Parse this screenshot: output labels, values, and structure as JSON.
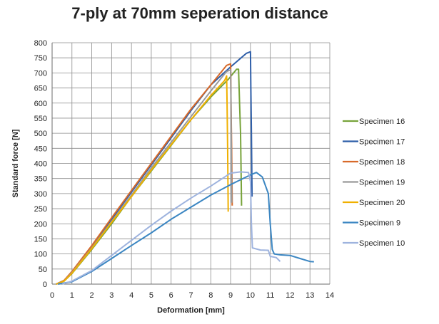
{
  "chart_data": {
    "type": "line",
    "title": "7-ply at 70mm seperation distance",
    "xlabel": "Deformation [mm]",
    "ylabel": "Standard force [N]",
    "xlim": [
      0,
      14
    ],
    "ylim": [
      0,
      800
    ],
    "x_ticks": [
      0,
      1,
      2,
      3,
      4,
      5,
      6,
      7,
      8,
      9,
      10,
      11,
      12,
      13,
      14
    ],
    "y_ticks": [
      0,
      50,
      100,
      150,
      200,
      250,
      300,
      350,
      400,
      450,
      500,
      550,
      600,
      650,
      700,
      750,
      800
    ],
    "grid": true,
    "legend_position": "right",
    "series": [
      {
        "name": "Specimen 16",
        "color": "#77a33a",
        "points": [
          [
            0.2,
            0
          ],
          [
            0.6,
            10
          ],
          [
            1.0,
            35
          ],
          [
            2.0,
            115
          ],
          [
            3.0,
            200
          ],
          [
            4.0,
            290
          ],
          [
            5.0,
            375
          ],
          [
            6.0,
            460
          ],
          [
            7.0,
            545
          ],
          [
            8.0,
            620
          ],
          [
            8.9,
            680
          ],
          [
            9.3,
            712
          ],
          [
            9.4,
            712
          ],
          [
            9.45,
            600
          ],
          [
            9.5,
            500
          ],
          [
            9.55,
            260
          ]
        ]
      },
      {
        "name": "Specimen 17",
        "color": "#2e5ea8",
        "points": [
          [
            0.2,
            0
          ],
          [
            0.6,
            12
          ],
          [
            1.0,
            40
          ],
          [
            2.0,
            125
          ],
          [
            3.0,
            215
          ],
          [
            4.0,
            305
          ],
          [
            5.0,
            395
          ],
          [
            6.0,
            485
          ],
          [
            7.0,
            575
          ],
          [
            8.0,
            660
          ],
          [
            9.0,
            720
          ],
          [
            9.8,
            765
          ],
          [
            10.0,
            770
          ],
          [
            10.02,
            650
          ],
          [
            10.05,
            500
          ],
          [
            10.08,
            290
          ]
        ]
      },
      {
        "name": "Specimen 18",
        "color": "#d86a2a",
        "points": [
          [
            0.2,
            0
          ],
          [
            0.6,
            12
          ],
          [
            1.0,
            42
          ],
          [
            2.0,
            128
          ],
          [
            3.0,
            220
          ],
          [
            4.0,
            310
          ],
          [
            5.0,
            400
          ],
          [
            6.0,
            490
          ],
          [
            7.0,
            580
          ],
          [
            8.0,
            660
          ],
          [
            8.8,
            725
          ],
          [
            9.0,
            730
          ],
          [
            9.02,
            600
          ],
          [
            9.05,
            450
          ],
          [
            9.08,
            260
          ]
        ]
      },
      {
        "name": "Specimen 19",
        "color": "#9a9a9a",
        "points": [
          [
            0.2,
            0
          ],
          [
            0.6,
            10
          ],
          [
            1.0,
            38
          ],
          [
            2.0,
            120
          ],
          [
            3.0,
            208
          ],
          [
            4.0,
            295
          ],
          [
            5.0,
            385
          ],
          [
            6.0,
            470
          ],
          [
            7.0,
            555
          ],
          [
            8.0,
            640
          ],
          [
            8.8,
            705
          ],
          [
            9.0,
            710
          ],
          [
            9.02,
            600
          ],
          [
            9.04,
            400
          ],
          [
            9.06,
            270
          ]
        ]
      },
      {
        "name": "Specimen 20",
        "color": "#f0b000",
        "points": [
          [
            0.2,
            0
          ],
          [
            0.6,
            10
          ],
          [
            1.0,
            36
          ],
          [
            2.0,
            118
          ],
          [
            3.0,
            205
          ],
          [
            4.0,
            290
          ],
          [
            5.0,
            378
          ],
          [
            6.0,
            462
          ],
          [
            7.0,
            545
          ],
          [
            8.0,
            625
          ],
          [
            8.7,
            675
          ],
          [
            8.8,
            690
          ],
          [
            8.82,
            600
          ],
          [
            8.85,
            450
          ],
          [
            8.88,
            240
          ]
        ]
      },
      {
        "name": "Specimen 9",
        "color": "#3b86c2",
        "points": [
          [
            0.3,
            0
          ],
          [
            1.0,
            8
          ],
          [
            2.0,
            42
          ],
          [
            3.0,
            85
          ],
          [
            4.0,
            128
          ],
          [
            5.0,
            170
          ],
          [
            6.0,
            215
          ],
          [
            7.0,
            255
          ],
          [
            8.0,
            295
          ],
          [
            9.0,
            330
          ],
          [
            10.0,
            362
          ],
          [
            10.3,
            370
          ],
          [
            10.6,
            355
          ],
          [
            10.9,
            300
          ],
          [
            11.0,
            200
          ],
          [
            11.1,
            115
          ],
          [
            11.2,
            100
          ],
          [
            11.5,
            97
          ],
          [
            12.0,
            95
          ],
          [
            12.5,
            85
          ],
          [
            13.0,
            75
          ],
          [
            13.2,
            74
          ]
        ]
      },
      {
        "name": "Specimen 10",
        "color": "#9eb3de",
        "points": [
          [
            0.5,
            0
          ],
          [
            1.0,
            10
          ],
          [
            2.0,
            45
          ],
          [
            3.0,
            95
          ],
          [
            4.0,
            145
          ],
          [
            5.0,
            195
          ],
          [
            6.0,
            242
          ],
          [
            7.0,
            285
          ],
          [
            8.0,
            325
          ],
          [
            8.7,
            355
          ],
          [
            9.0,
            368
          ],
          [
            9.5,
            372
          ],
          [
            9.9,
            370
          ],
          [
            10.0,
            340
          ],
          [
            10.05,
            200
          ],
          [
            10.1,
            120
          ],
          [
            10.5,
            113
          ],
          [
            10.9,
            112
          ],
          [
            11.0,
            92
          ],
          [
            11.3,
            88
          ],
          [
            11.5,
            75
          ]
        ]
      }
    ]
  }
}
